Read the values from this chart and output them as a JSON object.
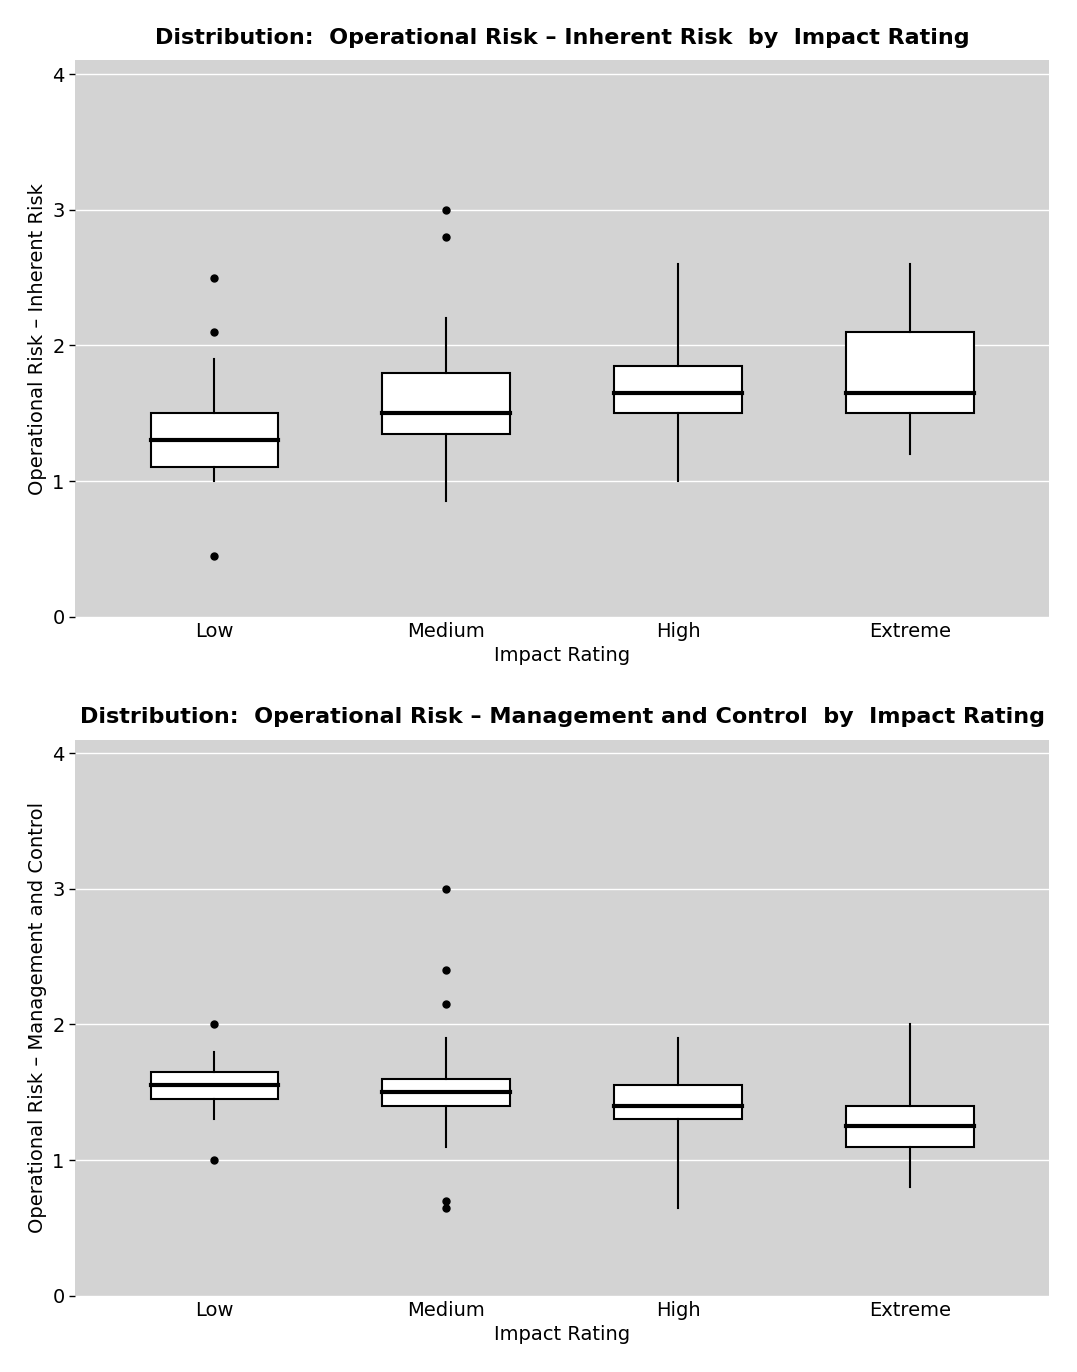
{
  "top_title": "Distribution:  Operational Risk – Inherent Risk  by  Impact Rating",
  "top_ylabel": "Operational Risk – Inherent Risk",
  "top_xlabel": "Impact Rating",
  "bottom_title": "Distribution:  Operational Risk – Management and Control  by  Impact Rating",
  "bottom_ylabel": "Operational Risk – Management and Control",
  "bottom_xlabel": "Impact Rating",
  "categories": [
    "Low",
    "Medium",
    "High",
    "Extreme"
  ],
  "ylim": [
    0,
    4.1
  ],
  "yticks": [
    0,
    1,
    2,
    3,
    4
  ],
  "background_color": "#d3d3d3",
  "box_facecolor": "white",
  "box_edgecolor": "black",
  "grid_color": "white",
  "top_boxes": [
    {
      "q1": 1.1,
      "median": 1.3,
      "q3": 1.5,
      "whislo": 1.0,
      "whishi": 1.9,
      "fliers": [
        0.45,
        2.1,
        2.5
      ]
    },
    {
      "q1": 1.35,
      "median": 1.5,
      "q3": 1.8,
      "whislo": 0.85,
      "whishi": 2.2,
      "fliers": [
        2.8,
        3.0
      ]
    },
    {
      "q1": 1.5,
      "median": 1.65,
      "q3": 1.85,
      "whislo": 1.0,
      "whishi": 2.6,
      "fliers": []
    },
    {
      "q1": 1.5,
      "median": 1.65,
      "q3": 2.1,
      "whislo": 1.2,
      "whishi": 2.6,
      "fliers": []
    }
  ],
  "bottom_boxes": [
    {
      "q1": 1.45,
      "median": 1.55,
      "q3": 1.65,
      "whislo": 1.3,
      "whishi": 1.8,
      "fliers": [
        1.0,
        2.0
      ]
    },
    {
      "q1": 1.4,
      "median": 1.5,
      "q3": 1.6,
      "whislo": 1.1,
      "whishi": 1.9,
      "fliers": [
        0.65,
        0.7,
        2.15,
        2.4,
        3.0
      ]
    },
    {
      "q1": 1.3,
      "median": 1.4,
      "q3": 1.55,
      "whislo": 0.65,
      "whishi": 1.9,
      "fliers": []
    },
    {
      "q1": 1.1,
      "median": 1.25,
      "q3": 1.4,
      "whislo": 0.8,
      "whishi": 2.0,
      "fliers": []
    }
  ]
}
